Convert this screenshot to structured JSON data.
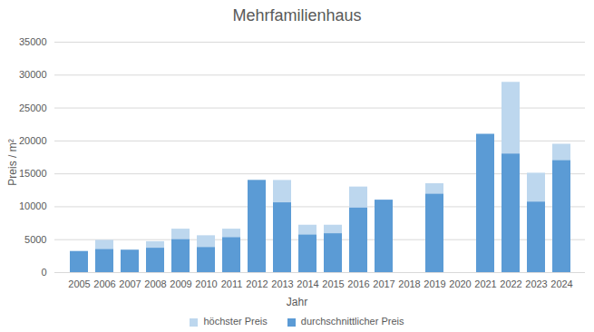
{
  "chart_data": {
    "type": "bar",
    "title": "Mehrfamilienhaus",
    "x_label": "Jahr",
    "y_label": "Preis / m²",
    "categories": [
      "2005",
      "2006",
      "2007",
      "2008",
      "2009",
      "2010",
      "2011",
      "2012",
      "2013",
      "2014",
      "2015",
      "2016",
      "2017",
      "2018",
      "2019",
      "2020",
      "2021",
      "2022",
      "2023",
      "2024"
    ],
    "series": [
      {
        "name": "höchster Preis",
        "color": "#bdd7ee",
        "values": [
          3200,
          4900,
          3400,
          4700,
          6600,
          5600,
          6600,
          14000,
          14000,
          7200,
          7200,
          13000,
          11000,
          null,
          13500,
          null,
          21000,
          28900,
          15100,
          19500
        ]
      },
      {
        "name": "durchschnittlicher Preis",
        "color": "#5b9bd5",
        "values": [
          3200,
          3500,
          3400,
          3700,
          5000,
          3800,
          5300,
          14000,
          10600,
          5700,
          5900,
          9800,
          11000,
          null,
          11900,
          null,
          21000,
          18000,
          10700,
          17000
        ]
      }
    ],
    "stacked": false,
    "ylim": [
      0,
      35000
    ],
    "yticks": [
      0,
      5000,
      10000,
      15000,
      20000,
      25000,
      30000,
      35000
    ],
    "grid": true,
    "legend": "bottom"
  }
}
